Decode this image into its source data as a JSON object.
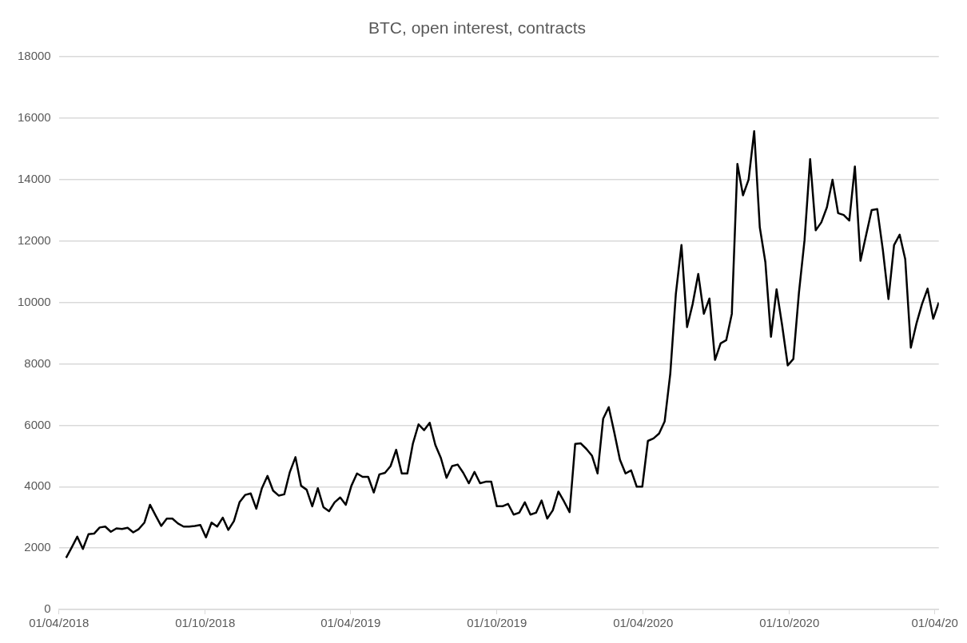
{
  "chart_data": {
    "type": "line",
    "title": "BTC, open interest, contracts",
    "x": [
      "2018-04-10",
      "2018-04-17",
      "2018-04-24",
      "2018-05-01",
      "2018-05-08",
      "2018-05-15",
      "2018-05-22",
      "2018-05-29",
      "2018-06-05",
      "2018-06-12",
      "2018-06-19",
      "2018-06-26",
      "2018-07-03",
      "2018-07-10",
      "2018-07-17",
      "2018-07-24",
      "2018-07-31",
      "2018-08-07",
      "2018-08-14",
      "2018-08-21",
      "2018-08-28",
      "2018-09-04",
      "2018-09-11",
      "2018-09-18",
      "2018-09-25",
      "2018-10-02",
      "2018-10-09",
      "2018-10-16",
      "2018-10-23",
      "2018-10-30",
      "2018-11-06",
      "2018-11-13",
      "2018-11-20",
      "2018-11-27",
      "2018-12-04",
      "2018-12-11",
      "2018-12-18",
      "2018-12-25",
      "2019-01-01",
      "2019-01-08",
      "2019-01-15",
      "2019-01-22",
      "2019-01-29",
      "2019-02-05",
      "2019-02-12",
      "2019-02-19",
      "2019-02-26",
      "2019-03-05",
      "2019-03-12",
      "2019-03-19",
      "2019-03-26",
      "2019-04-02",
      "2019-04-09",
      "2019-04-16",
      "2019-04-23",
      "2019-04-30",
      "2019-05-07",
      "2019-05-14",
      "2019-05-21",
      "2019-05-28",
      "2019-06-04",
      "2019-06-11",
      "2019-06-18",
      "2019-06-25",
      "2019-07-02",
      "2019-07-09",
      "2019-07-16",
      "2019-07-23",
      "2019-07-30",
      "2019-08-06",
      "2019-08-13",
      "2019-08-20",
      "2019-08-27",
      "2019-09-03",
      "2019-09-10",
      "2019-09-17",
      "2019-09-24",
      "2019-10-01",
      "2019-10-08",
      "2019-10-15",
      "2019-10-22",
      "2019-10-29",
      "2019-11-05",
      "2019-11-12",
      "2019-11-19",
      "2019-11-26",
      "2019-12-03",
      "2019-12-10",
      "2019-12-17",
      "2019-12-24",
      "2019-12-31",
      "2020-01-07",
      "2020-01-14",
      "2020-01-21",
      "2020-01-28",
      "2020-02-04",
      "2020-02-11",
      "2020-02-18",
      "2020-02-25",
      "2020-03-03",
      "2020-03-10",
      "2020-03-17",
      "2020-03-24",
      "2020-03-31",
      "2020-04-07",
      "2020-04-14",
      "2020-04-21",
      "2020-04-28",
      "2020-05-05",
      "2020-05-12",
      "2020-05-19",
      "2020-05-26",
      "2020-06-02",
      "2020-06-09",
      "2020-06-16",
      "2020-06-23",
      "2020-06-30",
      "2020-07-07",
      "2020-07-14",
      "2020-07-21",
      "2020-07-28",
      "2020-08-04",
      "2020-08-11",
      "2020-08-18",
      "2020-08-25",
      "2020-09-01",
      "2020-09-08",
      "2020-09-15",
      "2020-09-22",
      "2020-09-29",
      "2020-10-06",
      "2020-10-13",
      "2020-10-20",
      "2020-10-27",
      "2020-11-03",
      "2020-11-10",
      "2020-11-17",
      "2020-11-24",
      "2020-12-01",
      "2020-12-08",
      "2020-12-15",
      "2020-12-22",
      "2020-12-29",
      "2021-01-05",
      "2021-01-12",
      "2021-01-19",
      "2021-01-26",
      "2021-02-02",
      "2021-02-09",
      "2021-02-16",
      "2021-02-23",
      "2021-03-02",
      "2021-03-09",
      "2021-03-16",
      "2021-03-23",
      "2021-03-30",
      "2021-04-06"
    ],
    "series": [
      {
        "color": "#000000",
        "values": [
          1680,
          2020,
          2370,
          1970,
          2450,
          2470,
          2670,
          2700,
          2530,
          2640,
          2620,
          2660,
          2510,
          2620,
          2830,
          3410,
          3060,
          2720,
          2960,
          2960,
          2800,
          2700,
          2700,
          2720,
          2750,
          2350,
          2830,
          2700,
          2990,
          2590,
          2880,
          3490,
          3730,
          3780,
          3280,
          3950,
          4350,
          3870,
          3710,
          3750,
          4480,
          4960,
          4030,
          3900,
          3360,
          3950,
          3330,
          3200,
          3490,
          3650,
          3410,
          4030,
          4430,
          4320,
          4320,
          3810,
          4400,
          4450,
          4670,
          5200,
          4430,
          4430,
          5410,
          6030,
          5840,
          6080,
          5360,
          4930,
          4290,
          4670,
          4720,
          4450,
          4110,
          4480,
          4110,
          4160,
          4160,
          3360,
          3360,
          3440,
          3090,
          3150,
          3490,
          3090,
          3150,
          3550,
          2960,
          3230,
          3840,
          3520,
          3170,
          5390,
          5410,
          5230,
          5010,
          4430,
          6210,
          6590,
          5760,
          4880,
          4430,
          4530,
          4000,
          4000,
          5490,
          5570,
          5730,
          6130,
          7680,
          10290,
          11870,
          9200,
          9950,
          10930,
          9630,
          10130,
          8130,
          8670,
          8770,
          9630,
          14510,
          13490,
          14000,
          15580,
          12450,
          11310,
          8880,
          10430,
          9250,
          7950,
          8160,
          10320,
          12030,
          14670,
          12350,
          12610,
          13100,
          14000,
          12910,
          12850,
          12670,
          14430,
          11360,
          12190,
          13010,
          13040,
          11710,
          10110,
          11870,
          12210,
          11410,
          8530,
          9310,
          9950,
          10450,
          9470,
          10000
        ]
      }
    ],
    "xlim": [
      "2018-04-01",
      "2021-04-06"
    ],
    "xticks": [
      {
        "value": "2018-04-01",
        "label": "01/04/2018"
      },
      {
        "value": "2018-10-01",
        "label": "01/10/2018"
      },
      {
        "value": "2019-04-01",
        "label": "01/04/2019"
      },
      {
        "value": "2019-10-01",
        "label": "01/10/2019"
      },
      {
        "value": "2020-04-01",
        "label": "01/04/2020"
      },
      {
        "value": "2020-10-01",
        "label": "01/10/2020"
      },
      {
        "value": "2021-04-01",
        "label": "01/04/20"
      }
    ],
    "ylim": [
      0,
      18000
    ],
    "yticks": [
      0,
      2000,
      4000,
      6000,
      8000,
      10000,
      12000,
      14000,
      16000,
      18000
    ],
    "grid": "y",
    "marker": "none",
    "line_style": "solid"
  }
}
